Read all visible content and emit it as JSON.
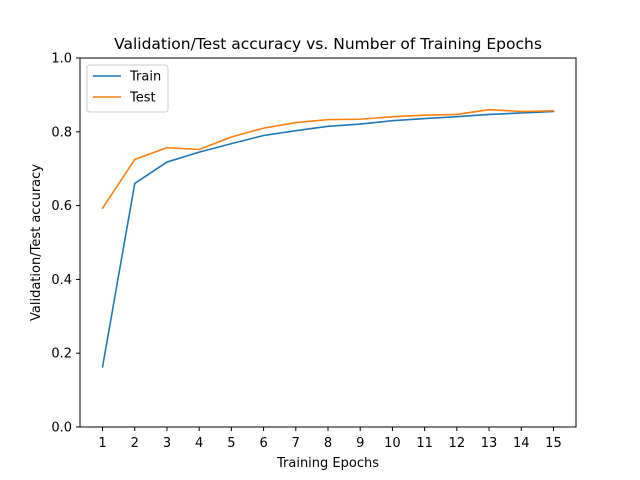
{
  "chart_data": {
    "type": "line",
    "title": "Validation/Test accuracy vs. Number of Training Epochs",
    "xlabel": "Training Epochs",
    "ylabel": "Validation/Test accuracy",
    "x": [
      1,
      2,
      3,
      4,
      5,
      6,
      7,
      8,
      9,
      10,
      11,
      12,
      13,
      14,
      15
    ],
    "xticks": [
      "1",
      "2",
      "3",
      "4",
      "5",
      "6",
      "7",
      "8",
      "9",
      "10",
      "11",
      "12",
      "13",
      "14",
      "15"
    ],
    "xlim": [
      0.3,
      15.7
    ],
    "ylim": [
      0.0,
      1.0
    ],
    "yticks": [
      "0.0",
      "0.2",
      "0.4",
      "0.6",
      "0.8",
      "1.0"
    ],
    "grid": false,
    "legend_position": "upper left",
    "series": [
      {
        "name": "Train",
        "color": "#1f77b4",
        "values": [
          0.163,
          0.66,
          0.718,
          0.745,
          0.768,
          0.79,
          0.803,
          0.815,
          0.821,
          0.83,
          0.836,
          0.841,
          0.847,
          0.851,
          0.855
        ]
      },
      {
        "name": "Test",
        "color": "#ff7f0e",
        "values": [
          0.593,
          0.725,
          0.757,
          0.752,
          0.786,
          0.81,
          0.825,
          0.833,
          0.834,
          0.841,
          0.845,
          0.847,
          0.86,
          0.855,
          0.857
        ]
      }
    ]
  }
}
